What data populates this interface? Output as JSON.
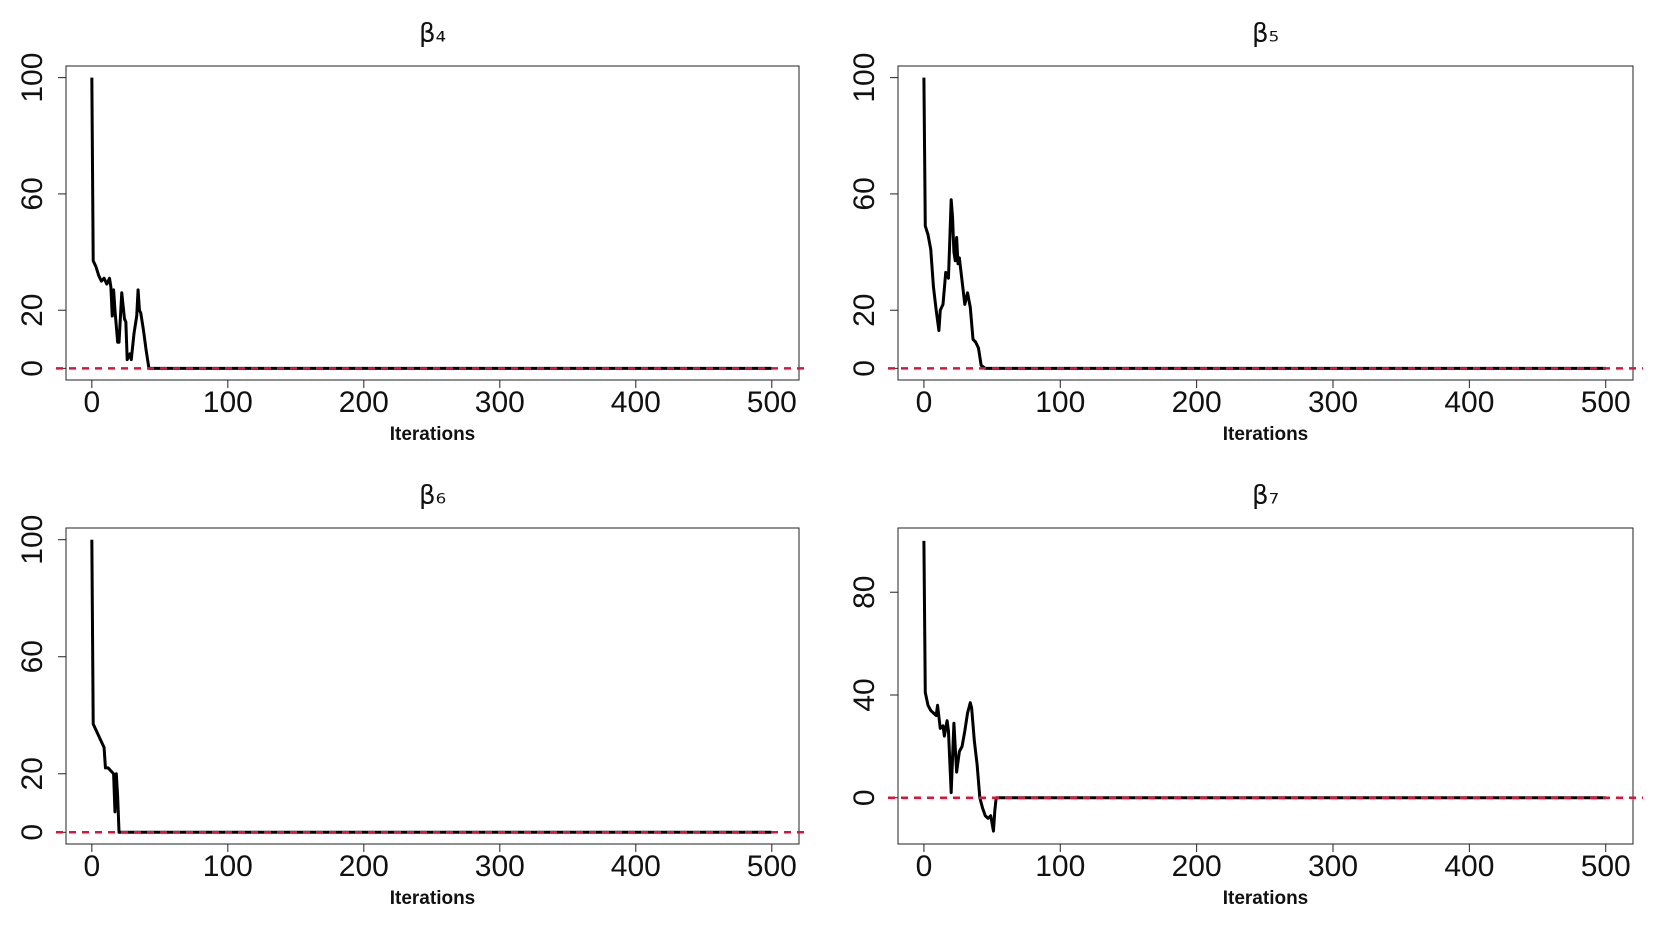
{
  "chart_data": [
    {
      "type": "line",
      "title": "β₄",
      "xlabel": "Iterations",
      "x": [
        0,
        1,
        3,
        5,
        7,
        9,
        11,
        13,
        14,
        15,
        16,
        17,
        19,
        20,
        22,
        24,
        25,
        26,
        28,
        29,
        31,
        33,
        34,
        35,
        36,
        38,
        40,
        42,
        500
      ],
      "series": [
        {
          "color": "#000000",
          "values": [
            100,
            37,
            35,
            32,
            30,
            31,
            29,
            31,
            28,
            18,
            27,
            20,
            9,
            9,
            26,
            17,
            16,
            3,
            5,
            3,
            12,
            18,
            27,
            20,
            19,
            13,
            6,
            0,
            0
          ]
        }
      ],
      "xlim": [
        -19,
        520
      ],
      "ylim": [
        -4,
        104
      ],
      "xticks": [
        0,
        100,
        200,
        300,
        400,
        500
      ],
      "yticks": [
        0,
        20,
        60,
        100
      ],
      "reference_line": {
        "y": 0,
        "color": "#dc143c"
      }
    },
    {
      "type": "line",
      "title": "β₅",
      "xlabel": "Iterations",
      "x": [
        0,
        1,
        3,
        5,
        7,
        9,
        11,
        12,
        14,
        16,
        18,
        20,
        21,
        22,
        23,
        24,
        25,
        26,
        28,
        30,
        32,
        34,
        36,
        38,
        40,
        42,
        45,
        500
      ],
      "series": [
        {
          "color": "#000000",
          "values": [
            100,
            49,
            46,
            41,
            28,
            20,
            13,
            20,
            22,
            33,
            31,
            58,
            52,
            40,
            37,
            45,
            36,
            38,
            30,
            22,
            26,
            21,
            10,
            9,
            7,
            1,
            0,
            0
          ]
        }
      ],
      "xlim": [
        -19,
        520
      ],
      "ylim": [
        -4,
        104
      ],
      "xticks": [
        0,
        100,
        200,
        300,
        400,
        500
      ],
      "yticks": [
        0,
        20,
        60,
        100
      ],
      "reference_line": {
        "y": 0,
        "color": "#dc143c"
      }
    },
    {
      "type": "line",
      "title": "β₆",
      "xlabel": "Iterations",
      "x": [
        0,
        1,
        3,
        5,
        7,
        9,
        10,
        12,
        14,
        16,
        17,
        18,
        19,
        20,
        500
      ],
      "series": [
        {
          "color": "#000000",
          "values": [
            100,
            37,
            35,
            33,
            31,
            29,
            22,
            22,
            21,
            20,
            7,
            20,
            12,
            0,
            0
          ]
        }
      ],
      "xlim": [
        -19,
        520
      ],
      "ylim": [
        -4,
        104
      ],
      "xticks": [
        0,
        100,
        200,
        300,
        400,
        500
      ],
      "yticks": [
        0,
        20,
        60,
        100
      ],
      "reference_line": {
        "y": 0,
        "color": "#dc143c"
      }
    },
    {
      "type": "line",
      "title": "β₇",
      "xlabel": "Iterations",
      "x": [
        0,
        1,
        3,
        5,
        7,
        9,
        10,
        12,
        14,
        15,
        17,
        18,
        20,
        22,
        24,
        26,
        28,
        30,
        32,
        34,
        35,
        37,
        39,
        41,
        43,
        45,
        47,
        49,
        51,
        52,
        53,
        500
      ],
      "series": [
        {
          "color": "#000000",
          "values": [
            100,
            41,
            36,
            34,
            33,
            32,
            36,
            27,
            28,
            24,
            30,
            26,
            2,
            29,
            10,
            18,
            20,
            26,
            33,
            37,
            35,
            22,
            13,
            0,
            -4,
            -7,
            -8,
            -7,
            -13,
            -5,
            0,
            0
          ]
        }
      ],
      "xlim": [
        -19,
        520
      ],
      "ylim": [
        -18,
        105
      ],
      "xticks": [
        0,
        100,
        200,
        300,
        400,
        500
      ],
      "yticks": [
        0,
        40,
        80
      ],
      "reference_line": {
        "y": 0,
        "color": "#dc143c"
      }
    }
  ]
}
